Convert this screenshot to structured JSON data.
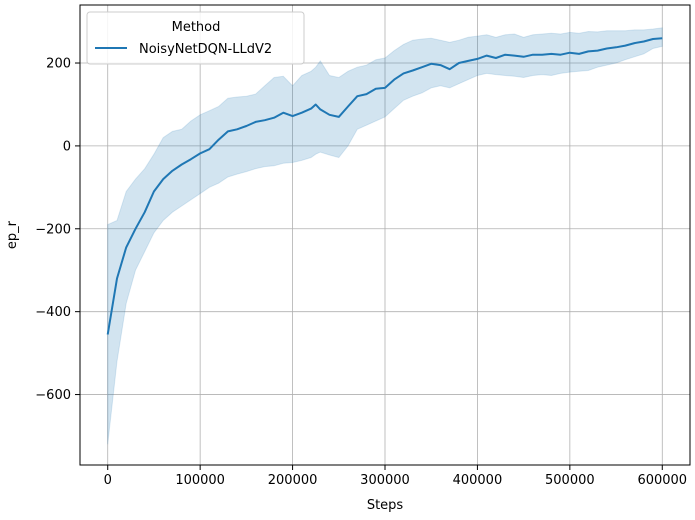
{
  "chart_data": {
    "type": "line",
    "xlabel": "Steps",
    "ylabel": "ep_r",
    "xlim": [
      -30000,
      630000
    ],
    "ylim": [
      -770,
      340
    ],
    "x_ticks": [
      0,
      100000,
      200000,
      300000,
      400000,
      500000,
      600000
    ],
    "x_tick_labels": [
      "0",
      "100000",
      "200000",
      "300000",
      "400000",
      "500000",
      "600000"
    ],
    "y_ticks": [
      -600,
      -400,
      -200,
      0,
      200
    ],
    "y_tick_labels": [
      "−600",
      "−400",
      "−200",
      "0",
      "200"
    ],
    "grid": true,
    "legend": {
      "title": "Method",
      "placement": "upper-left"
    },
    "series": [
      {
        "name": "NoisyNetDQN-LLdV2",
        "color": "#1f77b4",
        "band_color": "#1f77b4",
        "x": [
          0,
          10000,
          20000,
          30000,
          40000,
          50000,
          60000,
          70000,
          80000,
          90000,
          100000,
          110000,
          120000,
          130000,
          140000,
          150000,
          160000,
          170000,
          180000,
          190000,
          200000,
          210000,
          220000,
          225000,
          230000,
          240000,
          250000,
          260000,
          270000,
          280000,
          290000,
          300000,
          310000,
          320000,
          330000,
          340000,
          350000,
          360000,
          370000,
          380000,
          390000,
          400000,
          410000,
          420000,
          430000,
          440000,
          450000,
          460000,
          470000,
          480000,
          490000,
          500000,
          510000,
          520000,
          530000,
          540000,
          550000,
          560000,
          570000,
          580000,
          590000,
          600000
        ],
        "y": [
          -455,
          -320,
          -245,
          -200,
          -160,
          -110,
          -80,
          -60,
          -45,
          -32,
          -18,
          -8,
          15,
          35,
          40,
          48,
          58,
          62,
          68,
          80,
          72,
          80,
          90,
          100,
          88,
          75,
          70,
          95,
          120,
          125,
          138,
          140,
          160,
          175,
          182,
          190,
          198,
          195,
          185,
          200,
          205,
          210,
          218,
          212,
          220,
          218,
          215,
          220,
          220,
          222,
          220,
          225,
          222,
          228,
          230,
          235,
          238,
          242,
          248,
          252,
          258,
          260
        ],
        "lower": [
          -720,
          -520,
          -380,
          -300,
          -255,
          -210,
          -180,
          -160,
          -145,
          -130,
          -115,
          -100,
          -90,
          -75,
          -68,
          -62,
          -55,
          -50,
          -48,
          -42,
          -40,
          -35,
          -28,
          -20,
          -15,
          -22,
          -28,
          0,
          40,
          50,
          60,
          70,
          90,
          110,
          120,
          128,
          140,
          145,
          140,
          150,
          160,
          170,
          175,
          172,
          170,
          168,
          165,
          170,
          172,
          170,
          175,
          178,
          180,
          182,
          190,
          195,
          200,
          208,
          215,
          222,
          235,
          240
        ],
        "upper": [
          -190,
          -180,
          -110,
          -80,
          -55,
          -20,
          20,
          35,
          40,
          60,
          75,
          85,
          95,
          115,
          118,
          120,
          125,
          145,
          165,
          168,
          145,
          170,
          180,
          190,
          205,
          170,
          165,
          180,
          190,
          195,
          208,
          212,
          230,
          245,
          255,
          258,
          260,
          255,
          250,
          255,
          262,
          265,
          268,
          262,
          268,
          270,
          262,
          268,
          270,
          272,
          270,
          274,
          272,
          276,
          275,
          278,
          278,
          278,
          280,
          280,
          282,
          285
        ]
      }
    ]
  }
}
